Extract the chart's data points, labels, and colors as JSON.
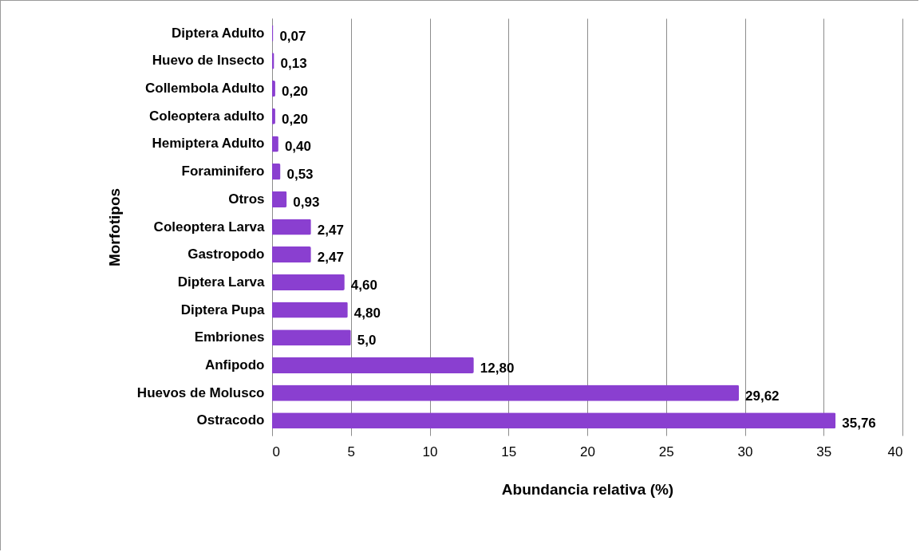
{
  "chart_data": {
    "type": "bar",
    "orientation": "horizontal",
    "xlabel": "Abundancia relativa (%)",
    "ylabel": "Morfotipos",
    "categories": [
      "Diptera Adulto",
      "Huevo de Insecto",
      "Collembola Adulto",
      "Coleoptera adulto",
      "Hemiptera Adulto",
      "Foraminifero",
      "Otros",
      "Coleoptera Larva",
      "Gastropodo",
      "Diptera Larva",
      "Diptera Pupa",
      "Embriones",
      "Anfipodo",
      "Huevos de Molusco",
      "Ostracodo"
    ],
    "values": [
      0.07,
      0.13,
      0.2,
      0.2,
      0.4,
      0.53,
      0.93,
      2.47,
      2.47,
      4.6,
      4.8,
      5.0,
      12.8,
      29.62,
      35.76
    ],
    "value_labels": [
      "0,07",
      "0,13",
      "0,20",
      "0,20",
      "0,40",
      "0,53",
      "0,93",
      "2,47",
      "2,47",
      "4,60",
      "4,80",
      "5,0",
      "12,80",
      "29,62",
      "35,76"
    ],
    "color": "#8a3fd0",
    "xlim": [
      0,
      40
    ],
    "xticks": [
      0,
      5,
      10,
      15,
      20,
      25,
      30,
      35,
      40
    ],
    "grid": "x"
  }
}
